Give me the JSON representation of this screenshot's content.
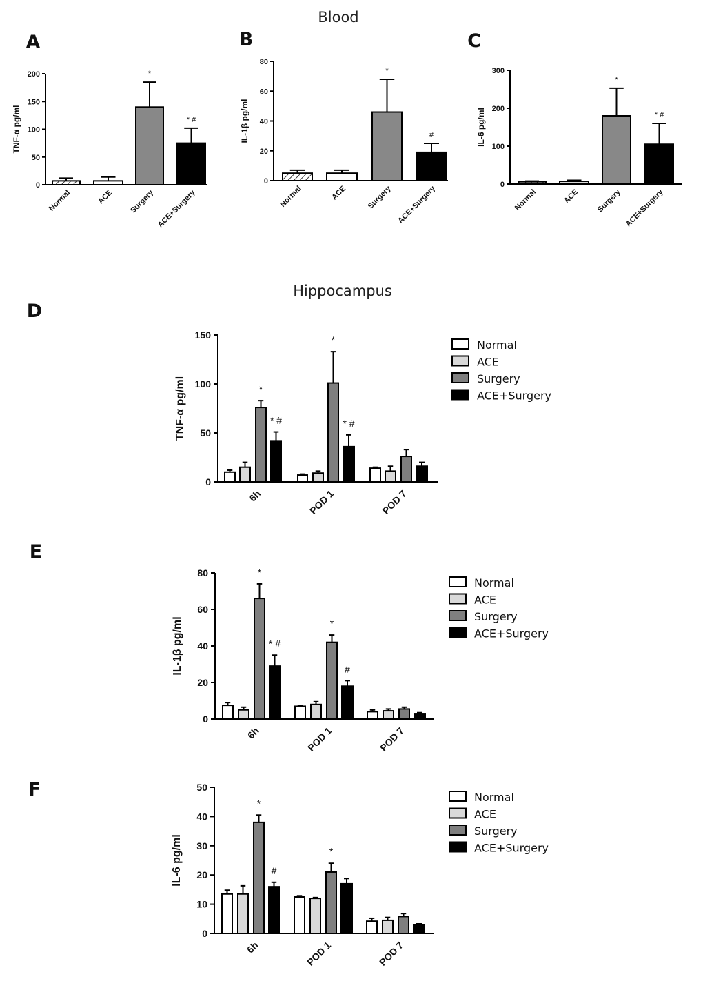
{
  "sections": {
    "blood": "Blood",
    "hippocampus": "Hippocampus"
  },
  "colors": {
    "Normal": "#ffffff",
    "ACE": "#d9d9d9",
    "Surgery": "#7f7f7f",
    "ACE+Surgery": "#000000",
    "blood_Surgery": "#888888"
  },
  "chart_data": [
    {
      "panel": "A",
      "type": "bar",
      "title": "",
      "ylabel": "TNF-α  pg/ml",
      "ylim": [
        0,
        200
      ],
      "yticks": [
        0,
        50,
        100,
        150,
        200
      ],
      "categories": [
        "Normal",
        "ACE",
        "Surgery",
        "ACE+Surgery"
      ],
      "values": [
        7,
        7,
        140,
        75
      ],
      "errors": [
        5,
        7,
        45,
        27
      ],
      "annotations": [
        "",
        "",
        "*",
        "* #"
      ]
    },
    {
      "panel": "B",
      "type": "bar",
      "title": "",
      "ylabel": "IL-1β  pg/ml",
      "ylim": [
        0,
        80
      ],
      "yticks": [
        0,
        20,
        40,
        60,
        80
      ],
      "categories": [
        "Normal",
        "ACE",
        "Surgery",
        "ACE+Surgery"
      ],
      "values": [
        5,
        5,
        46,
        19
      ],
      "errors": [
        2,
        2,
        22,
        6
      ],
      "annotations": [
        "",
        "",
        "*",
        "#"
      ]
    },
    {
      "panel": "C",
      "type": "bar",
      "title": "",
      "ylabel": "IL-6  pg/ml",
      "ylim": [
        0,
        300
      ],
      "yticks": [
        0,
        100,
        200,
        300
      ],
      "categories": [
        "Normal",
        "ACE",
        "Surgery",
        "ACE+Surgery"
      ],
      "values": [
        6,
        7,
        180,
        105
      ],
      "errors": [
        2,
        3,
        73,
        55
      ],
      "annotations": [
        "",
        "",
        "*",
        "* #"
      ]
    },
    {
      "panel": "D",
      "type": "bar",
      "ylabel": "TNF-α  pg/ml",
      "ylim": [
        0,
        150
      ],
      "yticks": [
        0,
        50,
        100,
        150
      ],
      "categories": [
        "6h",
        "POD 1",
        "POD 7"
      ],
      "series": [
        {
          "name": "Normal",
          "values": [
            10,
            7,
            14
          ],
          "errors": [
            2,
            1,
            1
          ],
          "annotations": [
            "",
            "",
            ""
          ]
        },
        {
          "name": "ACE",
          "values": [
            15,
            9,
            11
          ],
          "errors": [
            5,
            2,
            5
          ],
          "annotations": [
            "",
            "",
            ""
          ]
        },
        {
          "name": "Surgery",
          "values": [
            76,
            101,
            26
          ],
          "errors": [
            7,
            32,
            7
          ],
          "annotations": [
            "*",
            "*",
            ""
          ]
        },
        {
          "name": "ACE+Surgery",
          "values": [
            42,
            36,
            16
          ],
          "errors": [
            9,
            12,
            4
          ],
          "annotations": [
            "* #",
            "* #",
            ""
          ]
        }
      ]
    },
    {
      "panel": "E",
      "type": "bar",
      "ylabel": "IL-1β  pg/ml",
      "ylim": [
        0,
        80
      ],
      "yticks": [
        0,
        20,
        40,
        60,
        80
      ],
      "categories": [
        "6h",
        "POD 1",
        "POD 7"
      ],
      "series": [
        {
          "name": "Normal",
          "values": [
            7.5,
            7,
            4
          ],
          "errors": [
            1.5,
            0.3,
            1
          ],
          "annotations": [
            "",
            "",
            ""
          ]
        },
        {
          "name": "ACE",
          "values": [
            5,
            8,
            4.5
          ],
          "errors": [
            1.5,
            1.5,
            1
          ],
          "annotations": [
            "",
            "",
            ""
          ]
        },
        {
          "name": "Surgery",
          "values": [
            66,
            42,
            5.5
          ],
          "errors": [
            8,
            4,
            1
          ],
          "annotations": [
            "*",
            "*",
            ""
          ]
        },
        {
          "name": "ACE+Surgery",
          "values": [
            29,
            18,
            3
          ],
          "errors": [
            6,
            3,
            0.5
          ],
          "annotations": [
            "* #",
            "#",
            ""
          ]
        }
      ]
    },
    {
      "panel": "F",
      "type": "bar",
      "ylabel": "IL-6  pg/ml",
      "ylim": [
        0,
        50
      ],
      "yticks": [
        0,
        10,
        20,
        30,
        40,
        50
      ],
      "categories": [
        "6h",
        "POD 1",
        "POD 7"
      ],
      "series": [
        {
          "name": "Normal",
          "values": [
            13.5,
            12.5,
            4.2
          ],
          "errors": [
            1.3,
            0.4,
            1
          ],
          "annotations": [
            "",
            "",
            ""
          ]
        },
        {
          "name": "ACE",
          "values": [
            13.5,
            12,
            4.5
          ],
          "errors": [
            2.8,
            0.3,
            1
          ],
          "annotations": [
            "",
            "",
            ""
          ]
        },
        {
          "name": "Surgery",
          "values": [
            38,
            21,
            5.8
          ],
          "errors": [
            2.5,
            3,
            1
          ],
          "annotations": [
            "*",
            "*",
            ""
          ]
        },
        {
          "name": "ACE+Surgery",
          "values": [
            16,
            17,
            3
          ],
          "errors": [
            1.5,
            1.8,
            0.3
          ],
          "annotations": [
            "#",
            "",
            ""
          ]
        }
      ]
    }
  ]
}
